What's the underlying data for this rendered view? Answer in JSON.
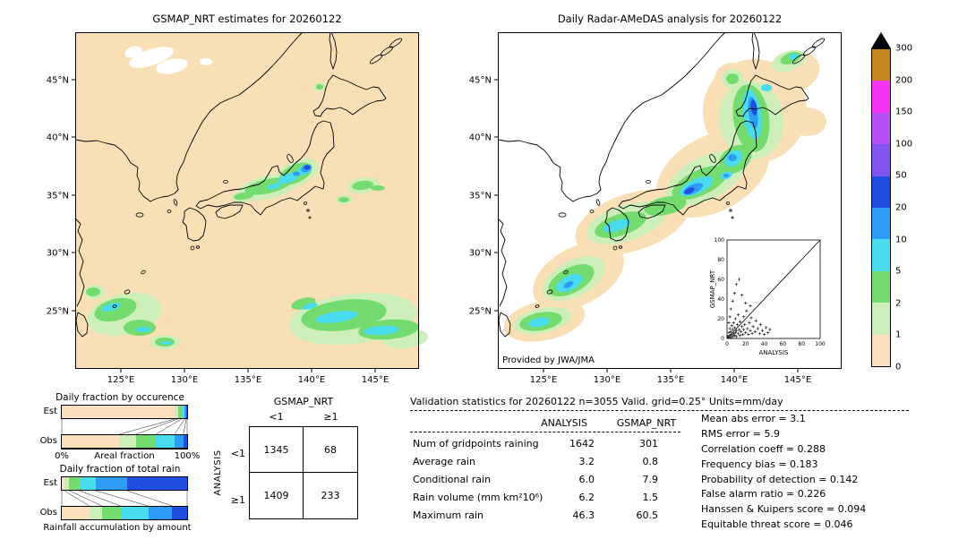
{
  "maps": {
    "lat_ticks": [
      "45°N",
      "40°N",
      "35°N",
      "30°N",
      "25°N"
    ],
    "lon_ticks": [
      "125°E",
      "130°E",
      "135°E",
      "140°E",
      "145°E"
    ],
    "left": {
      "title": "GSMAP_NRT estimates for 20260122"
    },
    "right": {
      "title": "Daily Radar-AMeDAS analysis for 20260122",
      "credit": "Provided by JWA/JMA"
    }
  },
  "colorbar": {
    "units": "mm/day",
    "labels": [
      "300",
      "200",
      "150",
      "100",
      "50",
      "20",
      "10",
      "5",
      "2",
      "1",
      "0"
    ],
    "colors_top_to_bottom": [
      "#C8861E",
      "#F233F2",
      "#B44FF2",
      "#8055F0",
      "#1E4FE0",
      "#2E9BF5",
      "#49DBEE",
      "#74DB6E",
      "#CDEEB9",
      "#FBE0BB"
    ],
    "overflow_color": "#000000"
  },
  "occurrence_chart": {
    "title": "Daily fraction by occurence",
    "rows": [
      "Est",
      "Obs"
    ],
    "x_left": "0%",
    "x_right": "100%",
    "x_label": "Areal fraction"
  },
  "totalrain_chart": {
    "title": "Daily fraction of total rain",
    "rows": [
      "Est",
      "Obs"
    ],
    "bottom_label": "Rainfall accumulation by amount"
  },
  "contingency": {
    "col_group": "GSMAP_NRT",
    "row_group": "ANALYSIS",
    "col_headers": [
      "<1",
      "≥1"
    ],
    "row_headers": [
      "<1",
      "≥1"
    ],
    "values": [
      [
        "1345",
        "68"
      ],
      [
        "1409",
        "233"
      ]
    ]
  },
  "inset": {
    "xlabel": "ANALYSIS",
    "ylabel": "GSMAP_NRT",
    "ticks": [
      "0",
      "20",
      "40",
      "60",
      "80",
      "100"
    ]
  },
  "stats": {
    "header": "Validation statistics for 20260122  n=3055 Valid. grid=0.25° Units=mm/day",
    "col_headers": [
      "ANALYSIS",
      "GSMAP_NRT"
    ],
    "rows": [
      {
        "label": "Num of gridpoints raining",
        "analysis": "1642",
        "gsmap": "301"
      },
      {
        "label": "Average rain",
        "analysis": "3.2",
        "gsmap": "0.8"
      },
      {
        "label": "Conditional rain",
        "analysis": "6.0",
        "gsmap": "7.9"
      },
      {
        "label": "Rain volume (mm km²10⁶)",
        "analysis": "6.2",
        "gsmap": "1.5"
      },
      {
        "label": "Maximum rain",
        "analysis": "46.3",
        "gsmap": "60.5"
      }
    ],
    "metrics": [
      {
        "label": "Mean abs error",
        "value": "3.1"
      },
      {
        "label": "RMS error",
        "value": "5.9"
      },
      {
        "label": "Correlation coeff",
        "value": "0.288"
      },
      {
        "label": "Frequency bias",
        "value": "0.183"
      },
      {
        "label": "Probability of detection",
        "value": "0.142"
      },
      {
        "label": "False alarm ratio",
        "value": "0.226"
      },
      {
        "label": "Hanssen & Kuipers score",
        "value": "0.094"
      },
      {
        "label": "Equitable threat score",
        "value": "0.046"
      }
    ]
  },
  "chart_data": [
    {
      "id": "gsmap_map",
      "type": "heatmap",
      "title": "GSMAP_NRT estimates for 20260122",
      "units": "mm/day",
      "levels": [
        0,
        1,
        2,
        5,
        10,
        20,
        50,
        100,
        150,
        200,
        300
      ],
      "x_ticks": [
        "125°E",
        "130°E",
        "135°E",
        "140°E",
        "145°E"
      ],
      "y_ticks": [
        "45°N",
        "40°N",
        "35°N",
        "30°N",
        "25°N"
      ]
    },
    {
      "id": "radar_map",
      "type": "heatmap",
      "title": "Daily Radar-AMeDAS analysis for 20260122",
      "units": "mm/day",
      "levels": [
        0,
        1,
        2,
        5,
        10,
        20,
        50,
        100,
        150,
        200,
        300
      ],
      "x_ticks": [
        "125°E",
        "130°E",
        "135°E",
        "140°E",
        "145°E"
      ],
      "y_ticks": [
        "45°N",
        "40°N",
        "35°N",
        "30°N",
        "25°N"
      ],
      "credit": "Provided by JWA/JMA"
    },
    {
      "id": "inset_scatter",
      "type": "scatter",
      "xlabel": "ANALYSIS",
      "ylabel": "GSMAP_NRT",
      "xlim": [
        0,
        100
      ],
      "ylim": [
        0,
        100
      ],
      "diagonal": true,
      "points": [
        [
          1,
          2
        ],
        [
          2,
          1
        ],
        [
          2,
          6
        ],
        [
          3,
          3
        ],
        [
          3,
          10
        ],
        [
          4,
          1
        ],
        [
          4,
          7
        ],
        [
          5,
          4
        ],
        [
          5,
          13
        ],
        [
          6,
          2
        ],
        [
          6,
          9
        ],
        [
          7,
          5
        ],
        [
          7,
          16
        ],
        [
          8,
          3
        ],
        [
          8,
          11
        ],
        [
          9,
          6
        ],
        [
          9,
          20
        ],
        [
          10,
          2
        ],
        [
          10,
          8
        ],
        [
          11,
          14
        ],
        [
          12,
          5
        ],
        [
          12,
          24
        ],
        [
          13,
          9
        ],
        [
          14,
          3
        ],
        [
          14,
          17
        ],
        [
          15,
          7
        ],
        [
          16,
          12
        ],
        [
          17,
          4
        ],
        [
          18,
          22
        ],
        [
          18,
          9
        ],
        [
          19,
          14
        ],
        [
          20,
          6
        ],
        [
          21,
          28
        ],
        [
          22,
          10
        ],
        [
          23,
          4
        ],
        [
          24,
          16
        ],
        [
          25,
          8
        ],
        [
          26,
          21
        ],
        [
          27,
          5
        ],
        [
          28,
          12
        ],
        [
          30,
          7
        ],
        [
          31,
          18
        ],
        [
          33,
          10
        ],
        [
          35,
          5
        ],
        [
          36,
          14
        ],
        [
          38,
          8
        ],
        [
          40,
          4
        ],
        [
          42,
          11
        ],
        [
          44,
          6
        ],
        [
          46,
          9
        ],
        [
          4,
          30
        ],
        [
          6,
          38
        ],
        [
          8,
          46
        ],
        [
          10,
          55
        ],
        [
          13,
          60
        ],
        [
          16,
          44
        ],
        [
          20,
          36
        ],
        [
          3,
          22
        ],
        [
          2,
          16
        ],
        [
          25,
          33
        ]
      ]
    },
    {
      "id": "occurrence",
      "type": "bar",
      "orientation": "horizontal-stacked",
      "title": "Daily fraction by occurence",
      "categories": [
        "Est",
        "Obs"
      ],
      "bins_mm_per_day": [
        "0-1",
        "1-2",
        "2-5",
        "5-10",
        "10-20",
        "20-50"
      ],
      "values": {
        "Est": [
          0.9,
          0.025,
          0.03,
          0.025,
          0.013,
          0.007
        ],
        "Obs": [
          0.46,
          0.13,
          0.16,
          0.15,
          0.07,
          0.03
        ]
      },
      "xlabel": "Areal fraction",
      "xlim": [
        "0%",
        "100%"
      ]
    },
    {
      "id": "total_rain",
      "type": "bar",
      "orientation": "horizontal-stacked",
      "title": "Daily fraction of total rain",
      "categories": [
        "Est",
        "Obs"
      ],
      "bins_mm_per_day": [
        "0-1",
        "1-2",
        "2-5",
        "5-10",
        "10-20",
        "20-50"
      ],
      "values": {
        "Est": [
          0.02,
          0.04,
          0.08,
          0.13,
          0.25,
          0.48
        ],
        "Obs": [
          0.22,
          0.1,
          0.15,
          0.22,
          0.19,
          0.12
        ]
      },
      "xlabel": "Rainfall accumulation by amount"
    },
    {
      "id": "contingency",
      "type": "table",
      "col_group": "GSMAP_NRT",
      "row_group": "ANALYSIS",
      "cols": [
        "<1",
        "≥1"
      ],
      "rows": [
        "<1",
        "≥1"
      ],
      "values": [
        [
          1345,
          68
        ],
        [
          1409,
          233
        ]
      ]
    },
    {
      "id": "validation",
      "type": "table",
      "title": "Validation statistics for 20260122  n=3055 Valid. grid=0.25° Units=mm/day",
      "columns": [
        "ANALYSIS",
        "GSMAP_NRT"
      ],
      "rows": [
        [
          "Num of gridpoints raining",
          1642,
          301
        ],
        [
          "Average rain",
          3.2,
          0.8
        ],
        [
          "Conditional rain",
          6.0,
          7.9
        ],
        [
          "Rain volume (mm km²10⁶)",
          6.2,
          1.5
        ],
        [
          "Maximum rain",
          46.3,
          60.5
        ]
      ],
      "metrics": {
        "Mean abs error": 3.1,
        "RMS error": 5.9,
        "Correlation coeff": 0.288,
        "Frequency bias": 0.183,
        "Probability of detection": 0.142,
        "False alarm ratio": 0.226,
        "Hanssen & Kuipers score": 0.094,
        "Equitable threat score": 0.046
      }
    }
  ]
}
